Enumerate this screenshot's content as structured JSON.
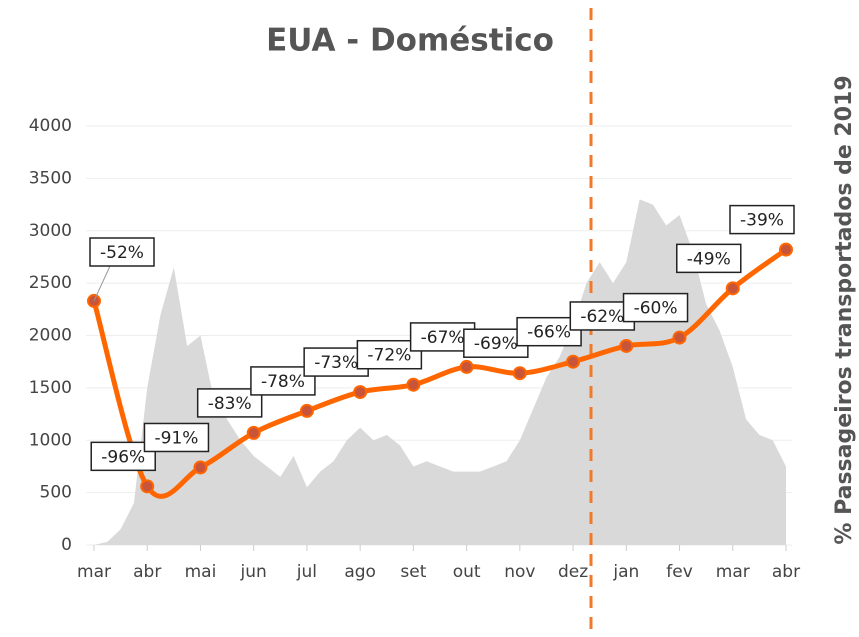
{
  "chart_data": {
    "type": "line",
    "title": "EUA - Doméstico",
    "y_label": "% Passageiros transportados de 2019",
    "categories": [
      "mar",
      "abr",
      "mai",
      "jun",
      "jul",
      "ago",
      "set",
      "out",
      "nov",
      "dez",
      "jan",
      "fev",
      "mar",
      "abr"
    ],
    "ylim": [
      0,
      4000
    ],
    "yticks": [
      0,
      500,
      1000,
      1500,
      2000,
      2500,
      3000,
      3500,
      4000
    ],
    "grid": true,
    "series": [
      {
        "name": "Passageiros",
        "color": "#ff6600",
        "values": [
          2330,
          560,
          740,
          1070,
          1280,
          1460,
          1530,
          1700,
          1640,
          1750,
          1900,
          1980,
          2450,
          2820
        ],
        "annotations": [
          "-52%",
          "-96%",
          "-91%",
          "-83%",
          "-78%",
          "-73%",
          "-72%",
          "-67%",
          "-69%",
          "-66%",
          "-62%",
          "-60%",
          "-49%",
          "-39%"
        ]
      }
    ],
    "area": {
      "color": "#d9d9d9",
      "values": [
        0,
        30,
        150,
        400,
        1500,
        2200,
        2650,
        1900,
        2000,
        1400,
        1200,
        1000,
        850,
        750,
        650,
        850,
        550,
        700,
        800,
        1000,
        1120,
        1000,
        1050,
        950,
        750,
        800,
        750,
        700,
        700,
        700,
        750,
        800,
        1000,
        1300,
        1600,
        1800,
        2100,
        2500,
        2700,
        2500,
        2700,
        3300,
        3250,
        3050,
        3150,
        2800,
        2300,
        2050,
        1700,
        1200,
        1050,
        1000,
        750
      ]
    }
  }
}
